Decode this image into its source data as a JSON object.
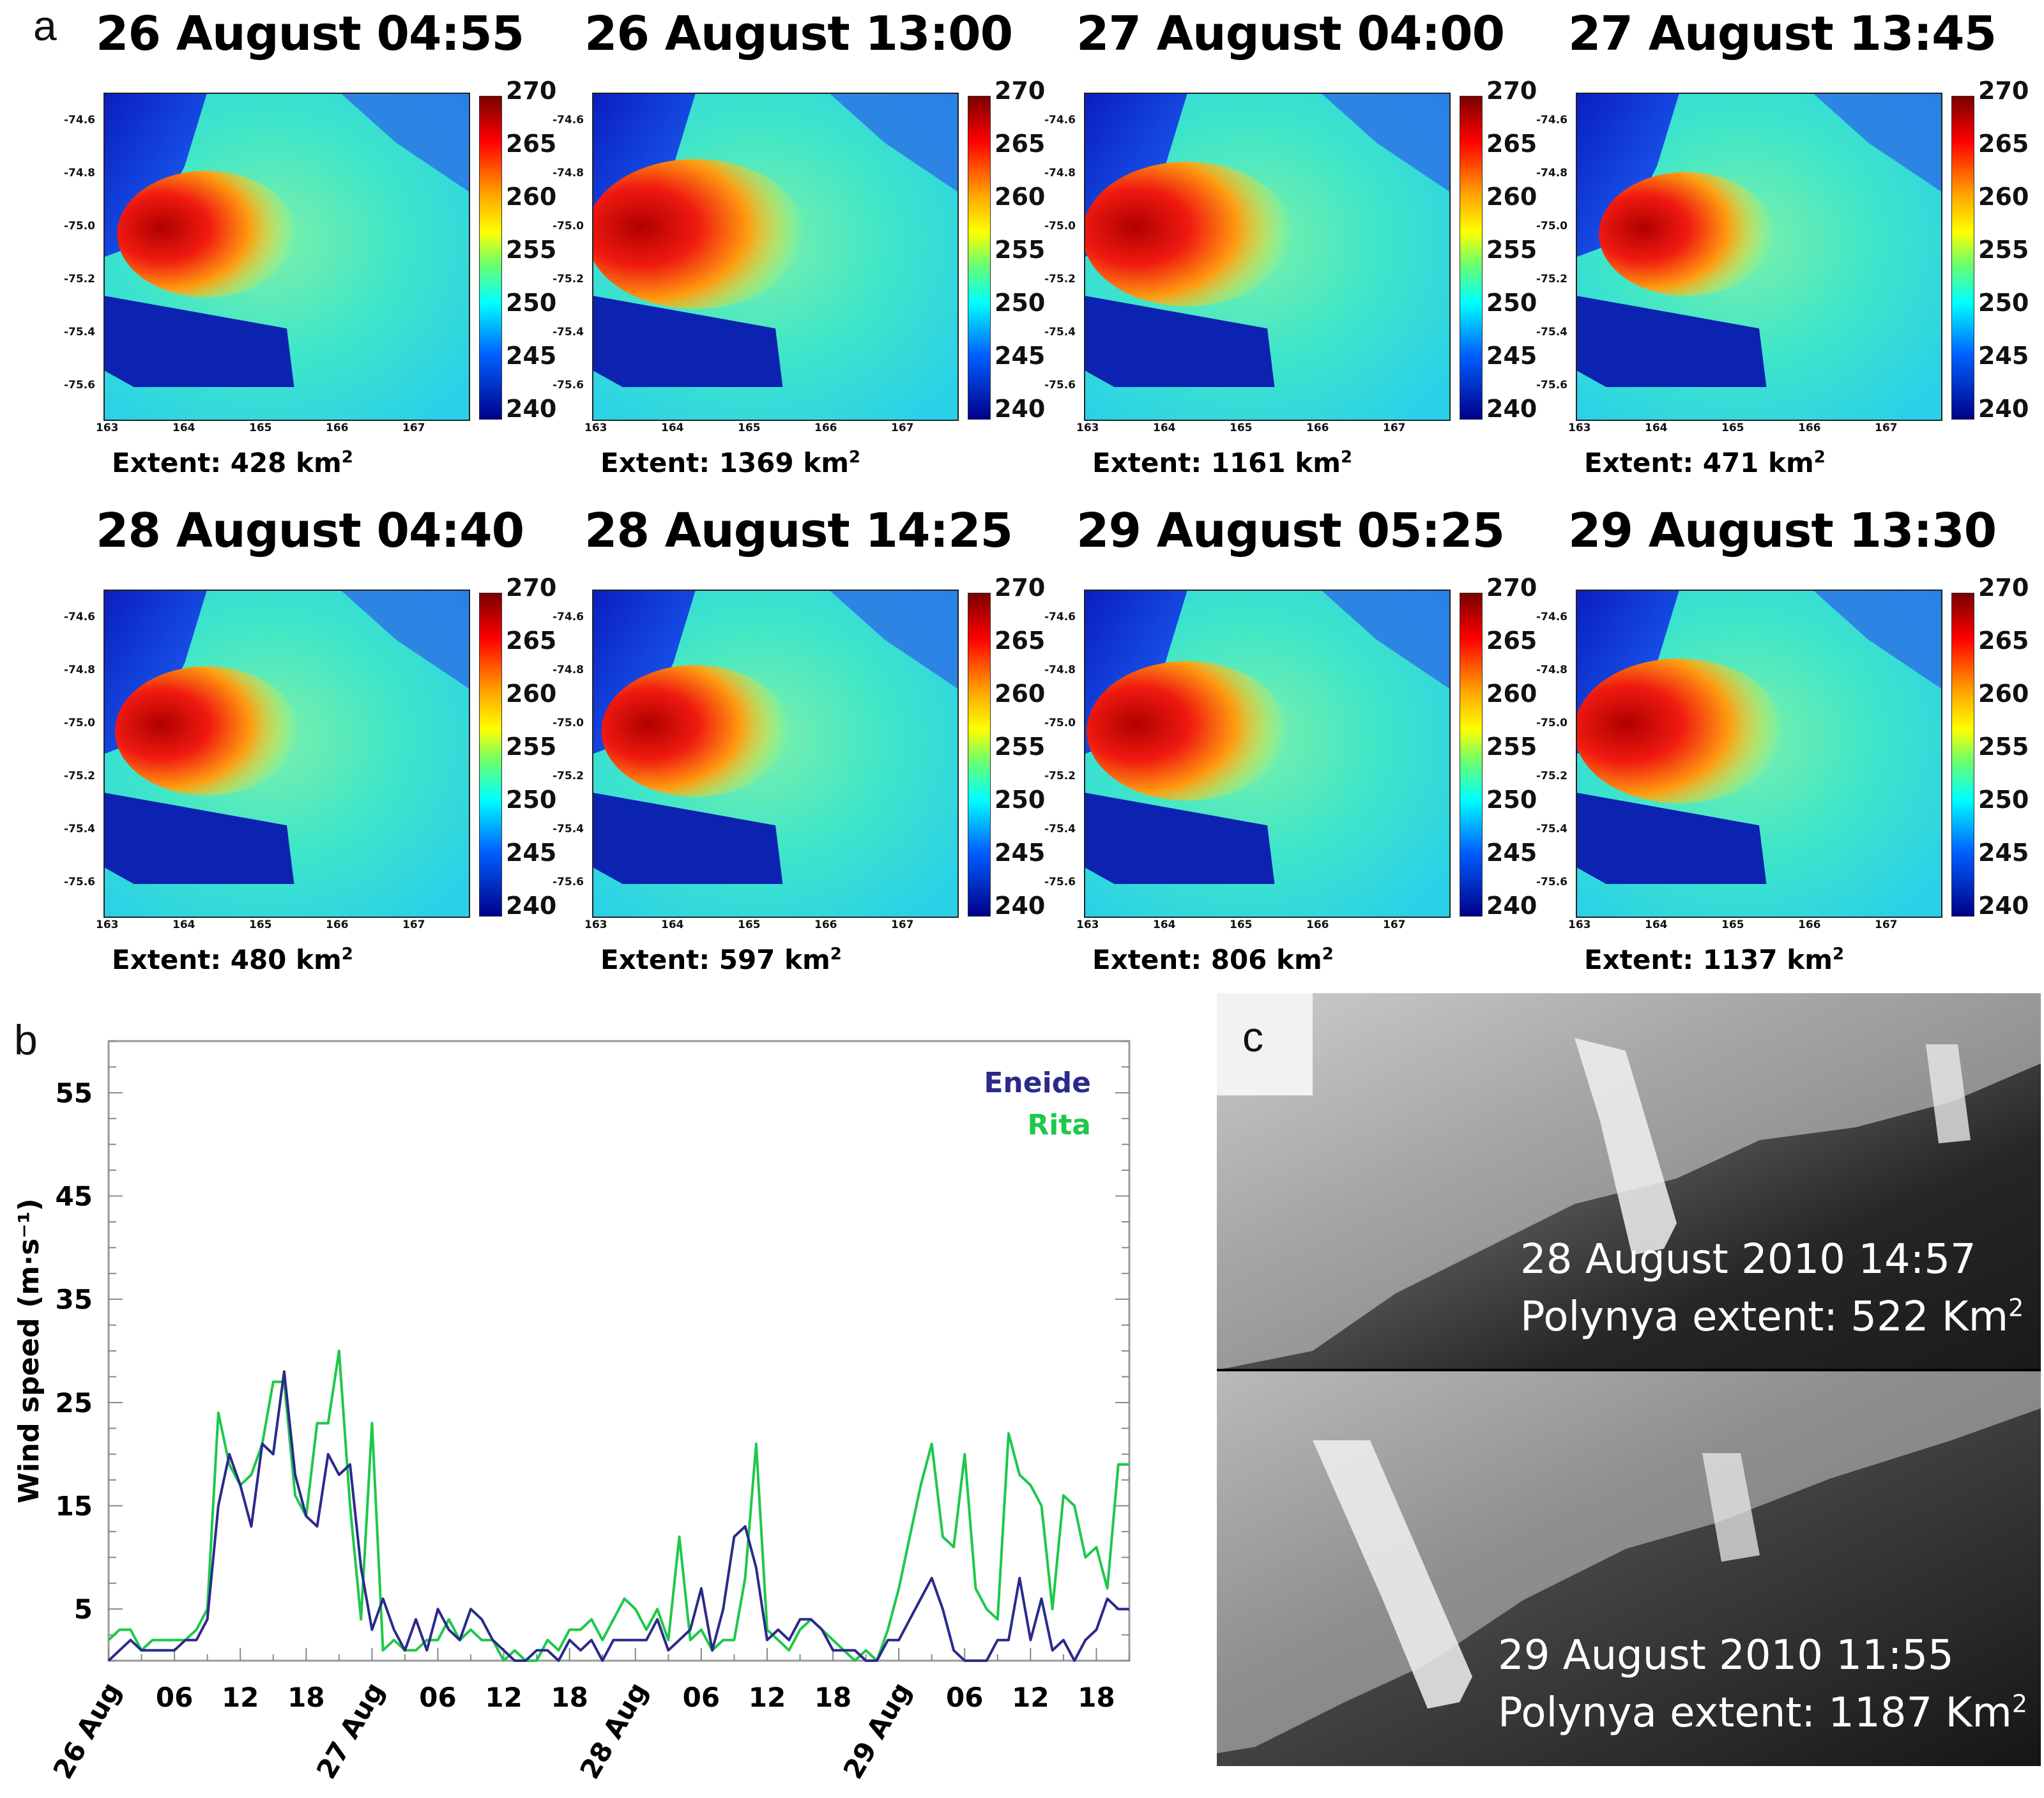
{
  "panel_a": {
    "letter": "a",
    "maps": [
      {
        "title": "26 August 04:55",
        "extent_label": "Extent: 428 km",
        "exp": "2",
        "hot": 0.55,
        "hot_main": 1
      },
      {
        "title": "26 August 13:00",
        "extent_label": "Extent: 1369 km",
        "exp": "2",
        "hot": 1.0,
        "hot_main": 1
      },
      {
        "title": "27 August 04:00",
        "extent_label": "Extent: 1161 km",
        "exp": "2",
        "hot": 0.9,
        "hot_main": 1
      },
      {
        "title": "27 August 13:45",
        "extent_label": "Extent: 471 km",
        "exp": "2",
        "hot": 0.5,
        "hot_main": 0
      },
      {
        "title": "28 August 04:40",
        "extent_label": "Extent: 480 km",
        "exp": "2",
        "hot": 0.6,
        "hot_main": 1
      },
      {
        "title": "28 August 14:25",
        "extent_label": "Extent: 597 km",
        "exp": "2",
        "hot": 0.65,
        "hot_main": 1
      },
      {
        "title": "29 August 05:25",
        "extent_label": "Extent: 806 km",
        "exp": "2",
        "hot": 0.8,
        "hot_main": 1
      },
      {
        "title": "29 August 13:30",
        "extent_label": "Extent: 1137 km",
        "exp": "2",
        "hot": 0.9,
        "hot_main": 1
      }
    ],
    "colorbar_ticks": [
      "270",
      "265",
      "260",
      "255",
      "250",
      "245",
      "240"
    ],
    "lat_ticks": [
      "-74.6",
      "-74.8",
      "-75.0",
      "-75.2",
      "-75.4",
      "-75.6"
    ],
    "lon_ticks": [
      "163",
      "164",
      "165",
      "166",
      "167"
    ]
  },
  "panel_b": {
    "letter": "b"
  },
  "chart_data": {
    "type": "line",
    "title": "",
    "xlabel": "",
    "ylabel": "Wind speed  (m·s⁻¹)",
    "ylim": [
      0,
      60
    ],
    "yticks": [
      5,
      15,
      25,
      35,
      45,
      55
    ],
    "xlim": [
      0,
      93
    ],
    "x_unit": "hours since 26 Aug 00:00",
    "x_ticks": [
      {
        "x": 0,
        "label": "26 Aug",
        "rot": true
      },
      {
        "x": 6,
        "label": "06",
        "rot": false
      },
      {
        "x": 12,
        "label": "12",
        "rot": false
      },
      {
        "x": 18,
        "label": "18",
        "rot": false
      },
      {
        "x": 24,
        "label": "27 Aug",
        "rot": true
      },
      {
        "x": 30,
        "label": "06",
        "rot": false
      },
      {
        "x": 36,
        "label": "12",
        "rot": false
      },
      {
        "x": 42,
        "label": "18",
        "rot": false
      },
      {
        "x": 48,
        "label": "28 Aug",
        "rot": true
      },
      {
        "x": 54,
        "label": "06",
        "rot": false
      },
      {
        "x": 60,
        "label": "12",
        "rot": false
      },
      {
        "x": 66,
        "label": "18",
        "rot": false
      },
      {
        "x": 72,
        "label": "29 Aug",
        "rot": true
      },
      {
        "x": 78,
        "label": "06",
        "rot": false
      },
      {
        "x": 84,
        "label": "12",
        "rot": false
      },
      {
        "x": 90,
        "label": "18",
        "rot": false
      }
    ],
    "series": [
      {
        "name": "Eneide",
        "color": "#2a2a8c",
        "x": [
          0,
          1,
          2,
          3,
          4,
          5,
          6,
          7,
          8,
          9,
          10,
          11,
          12,
          13,
          14,
          15,
          16,
          17,
          18,
          19,
          20,
          21,
          22,
          23,
          24,
          25,
          26,
          27,
          28,
          29,
          30,
          31,
          32,
          33,
          34,
          35,
          36,
          37,
          38,
          39,
          40,
          41,
          42,
          43,
          44,
          45,
          46,
          47,
          48,
          49,
          50,
          51,
          52,
          53,
          54,
          55,
          56,
          57,
          58,
          59,
          60,
          61,
          62,
          63,
          64,
          65,
          66,
          67,
          68,
          69,
          70,
          71,
          72,
          73,
          74,
          75,
          76,
          77,
          78,
          79,
          80,
          81,
          82,
          83,
          84,
          85,
          86,
          87,
          88,
          89,
          90,
          91,
          92,
          93
        ],
        "values": [
          0,
          1,
          2,
          1,
          1,
          1,
          1,
          2,
          2,
          4,
          15,
          20,
          17,
          13,
          21,
          20,
          28,
          18,
          14,
          13,
          20,
          18,
          19,
          9,
          3,
          6,
          3,
          1,
          4,
          1,
          5,
          3,
          2,
          5,
          4,
          2,
          1,
          0,
          0,
          1,
          1,
          0,
          2,
          1,
          2,
          0,
          2,
          2,
          2,
          2,
          4,
          1,
          2,
          3,
          7,
          1,
          5,
          12,
          13,
          9,
          2,
          3,
          2,
          4,
          4,
          3,
          1,
          1,
          1,
          0,
          0,
          2,
          2,
          4,
          6,
          8,
          5,
          1,
          0,
          0,
          0,
          2,
          2,
          8,
          2,
          6,
          1,
          2,
          0,
          2,
          3,
          6,
          5,
          5
        ]
      },
      {
        "name": "Rita",
        "color": "#1ec84a",
        "x": [
          0,
          1,
          2,
          3,
          4,
          5,
          6,
          7,
          8,
          9,
          10,
          11,
          12,
          13,
          14,
          15,
          16,
          17,
          18,
          19,
          20,
          21,
          22,
          23,
          24,
          25,
          26,
          27,
          28,
          29,
          30,
          31,
          32,
          33,
          34,
          35,
          36,
          37,
          38,
          39,
          40,
          41,
          42,
          43,
          44,
          45,
          46,
          47,
          48,
          49,
          50,
          51,
          52,
          53,
          54,
          55,
          56,
          57,
          58,
          59,
          60,
          61,
          62,
          63,
          64,
          65,
          66,
          67,
          68,
          69,
          70,
          71,
          72,
          73,
          74,
          75,
          76,
          77,
          78,
          79,
          80,
          81,
          82,
          83,
          84,
          85,
          86,
          87,
          88,
          89,
          90,
          91,
          92,
          93
        ],
        "values": [
          2,
          3,
          3,
          1,
          2,
          2,
          2,
          2,
          3,
          5,
          24,
          19,
          17,
          18,
          21,
          27,
          27,
          16,
          14,
          23,
          23,
          30,
          15,
          4,
          23,
          1,
          2,
          1,
          1,
          2,
          2,
          4,
          2,
          3,
          2,
          2,
          0,
          1,
          0,
          0,
          2,
          1,
          3,
          3,
          4,
          2,
          4,
          6,
          5,
          3,
          5,
          2,
          12,
          2,
          3,
          1,
          2,
          2,
          8,
          21,
          3,
          2,
          1,
          3,
          4,
          3,
          2,
          1,
          0,
          1,
          0,
          3,
          7,
          12,
          17,
          21,
          12,
          11,
          20,
          7,
          5,
          4,
          22,
          18,
          17,
          15,
          5,
          16,
          15,
          10,
          11,
          7,
          19,
          19
        ]
      }
    ],
    "legend": [
      "Eneide",
      "Rita"
    ],
    "legend_position": "top-right",
    "grid": false
  },
  "panel_c": {
    "letter": "c",
    "top_date": "28 August 2010  14:57",
    "top_extent": "Polynya extent:  522 Km",
    "bottom_date": "29 August 2010  11:55",
    "bottom_extent": "Polynya extent:  1187 Km",
    "exp": "2"
  }
}
